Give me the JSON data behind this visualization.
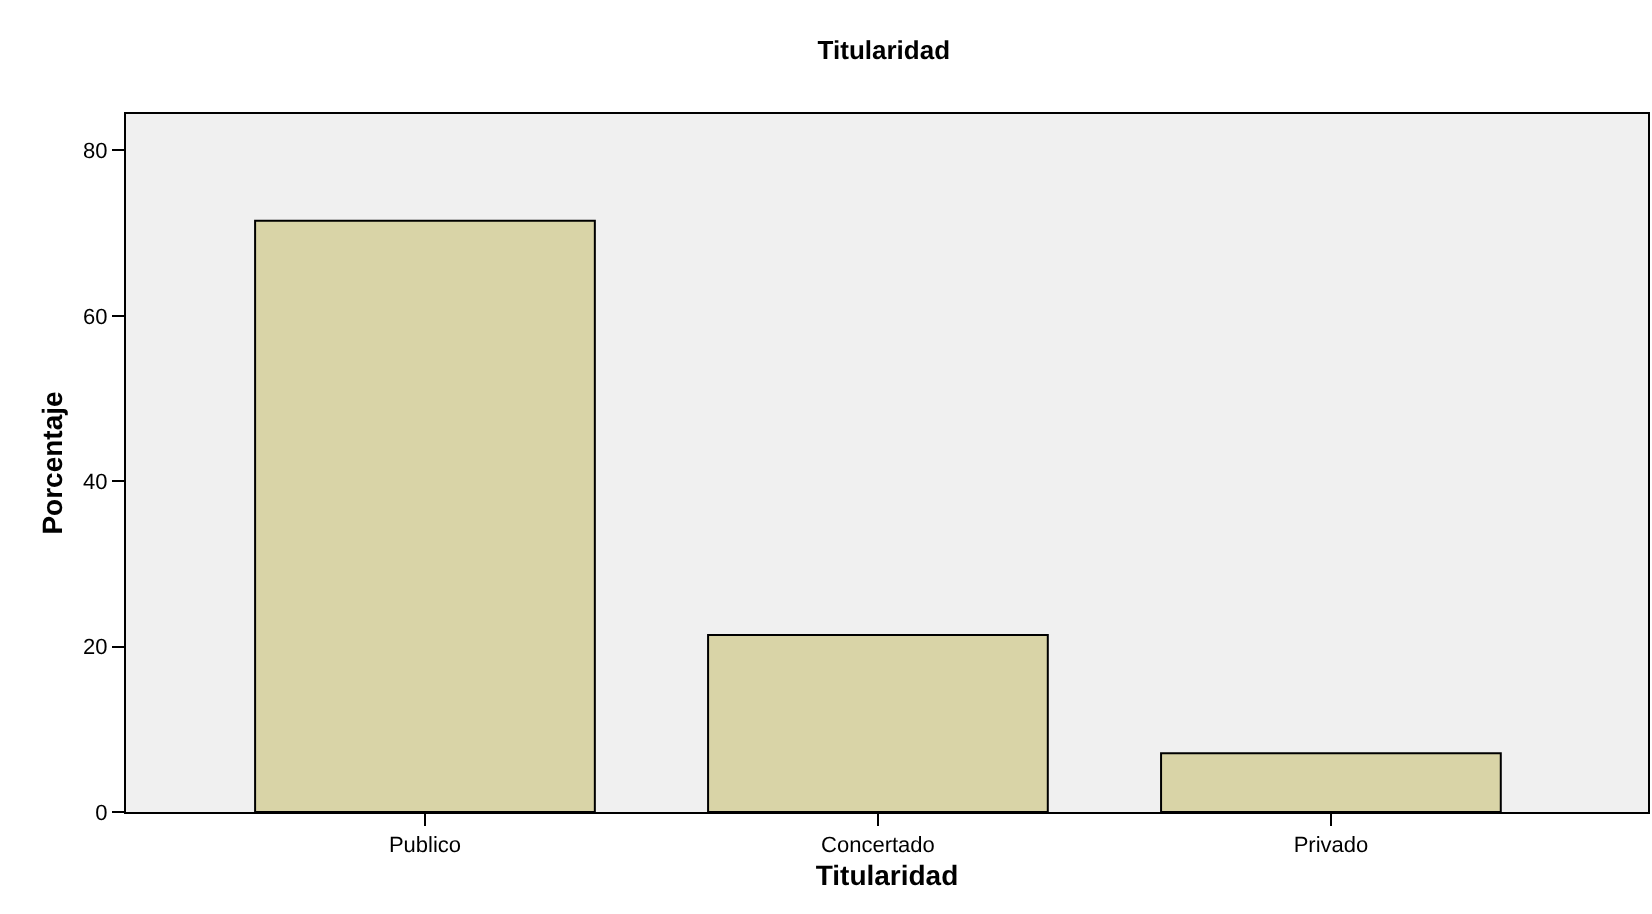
{
  "chart_data": {
    "type": "bar",
    "title": "Titularidad",
    "xlabel": "Titularidad",
    "ylabel": "Porcentaje",
    "categories": [
      "Publico",
      "Concertado",
      "Privado"
    ],
    "values": [
      71.5,
      21.4,
      7.1
    ],
    "color": "#d9d4a7",
    "ylim": [
      0,
      84.4
    ],
    "yticks": [
      0,
      20,
      40,
      60,
      80
    ],
    "grid": false,
    "legend": false
  }
}
